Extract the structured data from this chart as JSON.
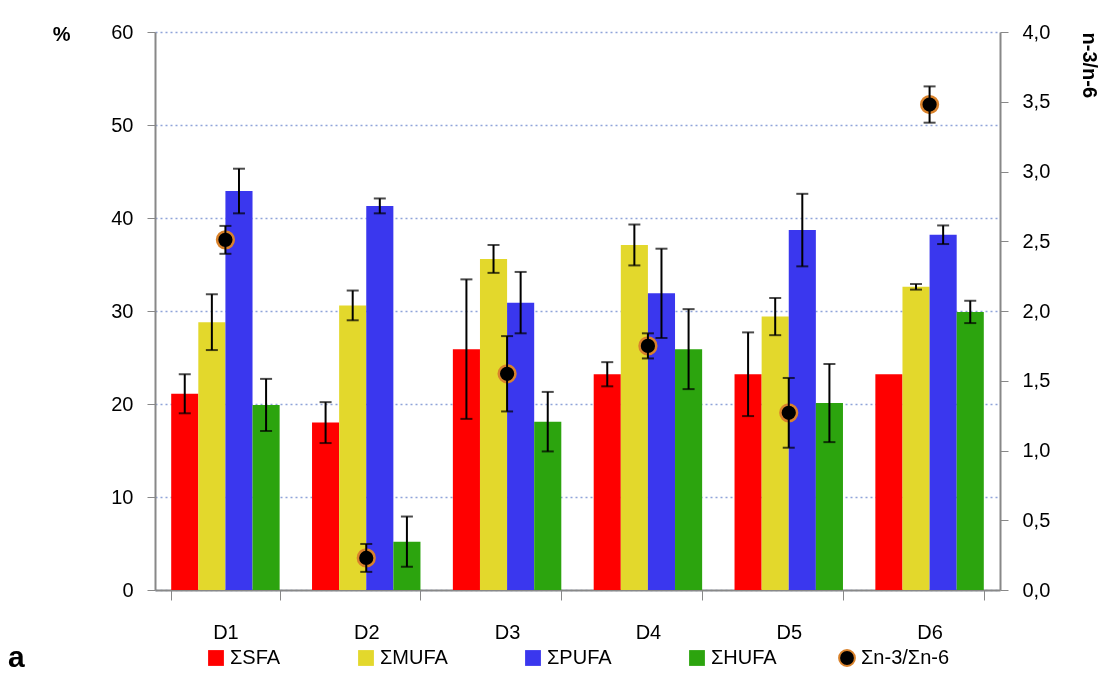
{
  "chart_data": {
    "type": "bar",
    "ylabel": "%",
    "y2label": "n-3/n-6",
    "categories": [
      "D1",
      "D2",
      "D3",
      "D4",
      "D5",
      "D6"
    ],
    "series": [
      {
        "name": "ΣSFA",
        "color": "#ff0000",
        "values": [
          21.1,
          18.0,
          25.9,
          23.2,
          23.2,
          23.2
        ],
        "errors": [
          2.1,
          2.2,
          7.5,
          1.3,
          4.5,
          null
        ]
      },
      {
        "name": "ΣMUFA",
        "color": "#e3d82c",
        "values": [
          28.8,
          30.6,
          35.6,
          37.1,
          29.4,
          32.6
        ],
        "errors": [
          3.0,
          1.6,
          1.5,
          2.2,
          2.0,
          0.3
        ]
      },
      {
        "name": "ΣPUFA",
        "color": "#3a37ee",
        "values": [
          42.9,
          41.3,
          30.9,
          31.9,
          38.7,
          38.2
        ],
        "errors": [
          2.4,
          0.8,
          3.3,
          4.8,
          3.9,
          1.0
        ]
      },
      {
        "name": "ΣHUFA",
        "color": "#2ca40e",
        "values": [
          19.9,
          5.2,
          18.1,
          25.9,
          20.1,
          29.9
        ],
        "errors": [
          2.8,
          2.7,
          3.2,
          4.3,
          4.2,
          1.2
        ]
      },
      {
        "name": "Σn-3/Σn-6",
        "type": "scatter",
        "axis": "y2",
        "color": "#000000",
        "values": [
          2.51,
          0.23,
          1.55,
          1.75,
          1.27,
          3.48
        ],
        "errors": [
          0.1,
          0.1,
          0.27,
          0.09,
          0.25,
          0.13
        ]
      }
    ],
    "ylim": [
      0,
      60
    ],
    "yticks": [
      0,
      10,
      20,
      30,
      40,
      50,
      60
    ],
    "y2lim": [
      0,
      4
    ],
    "y2ticks": [
      {
        "value": 0,
        "label": "0,0"
      },
      {
        "value": 0.5,
        "label": "0,5"
      },
      {
        "value": 1,
        "label": "1,0"
      },
      {
        "value": 1.5,
        "label": "1,5"
      },
      {
        "value": 2,
        "label": "2,0"
      },
      {
        "value": 2.5,
        "label": "2,5"
      },
      {
        "value": 3,
        "label": "3,0"
      },
      {
        "value": 3.5,
        "label": "3,5"
      },
      {
        "value": 4,
        "label": "4,0"
      }
    ],
    "grid": "y",
    "legend": "bottom",
    "marker": "circle",
    "annotations": [
      "a"
    ]
  }
}
